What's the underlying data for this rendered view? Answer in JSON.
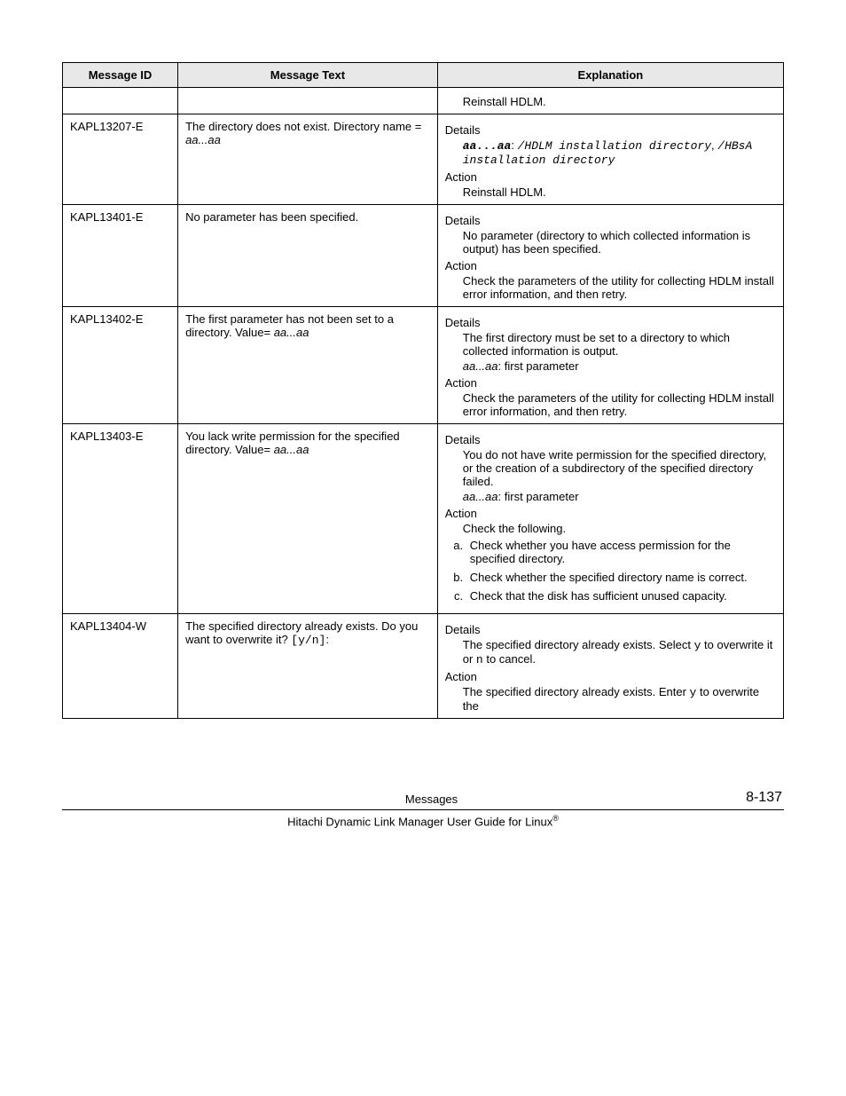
{
  "headers": {
    "id": "Message ID",
    "text": "Message Text",
    "exp": "Explanation"
  },
  "labels": {
    "details": "Details",
    "action": "Action"
  },
  "rows": {
    "r0": {
      "id": "",
      "msg": "",
      "exp_indent": "Reinstall HDLM."
    },
    "r1": {
      "id": "KAPL13207-E",
      "msg_l1": "The directory does not exist. Directory name = ",
      "msg_var": "aa...aa",
      "det_code_pre": "aa...aa",
      "det_code_colon": ": ",
      "det_code_rest": "/HDLM installation directory",
      "det_code_sep": ", ",
      "det_code_rest2": "/HBsA installation directory",
      "act": "Reinstall HDLM."
    },
    "r2": {
      "id": "KAPL13401-E",
      "msg": "No parameter has been specified.",
      "det": "No parameter (directory to which collected information is output) has been specified.",
      "act": "Check the parameters of the utility for collecting HDLM install error information, and then retry."
    },
    "r3": {
      "id": "KAPL13402-E",
      "msg_l1": "The first parameter has not been set to a directory. Value= ",
      "msg_var": "aa...aa",
      "det1": "The first directory must be set to a directory to which collected information is output.",
      "det2_var": "aa...aa",
      "det2_rest": ": first parameter",
      "act": "Check the parameters of the utility for collecting HDLM install error information, and then retry."
    },
    "r4": {
      "id": "KAPL13403-E",
      "msg_l1": "You lack write permission for the specified directory. Value= ",
      "msg_var": "aa...aa",
      "det1": "You do not have write permission for the specified directory, or the creation of a subdirectory of the specified directory failed.",
      "det2_var": "aa...aa",
      "det2_rest": ": first parameter",
      "act_lead": "Check the following.",
      "li_a": "Check whether you have access permission for the specified directory.",
      "li_b": "Check whether the specified directory name is correct.",
      "li_c": "Check that the disk has sufficient unused capacity."
    },
    "r5": {
      "id": "KAPL13404-W",
      "msg_l1": "The specified directory already exists. Do you want to overwrite it? ",
      "msg_code": "[y/n]",
      "msg_tail": ":",
      "det_pre": "The specified directory already exists. Select ",
      "det_y": "y",
      "det_mid": " to overwrite it or ",
      "det_n": "n",
      "det_post": " to cancel.",
      "act_pre": "The specified directory already exists. Enter ",
      "act_y": "y",
      "act_post": " to overwrite the"
    }
  },
  "footer": {
    "section": "Messages",
    "page": "8-137",
    "title_pre": "Hitachi Dynamic Link Manager User Guide for Linux",
    "reg": "®"
  }
}
